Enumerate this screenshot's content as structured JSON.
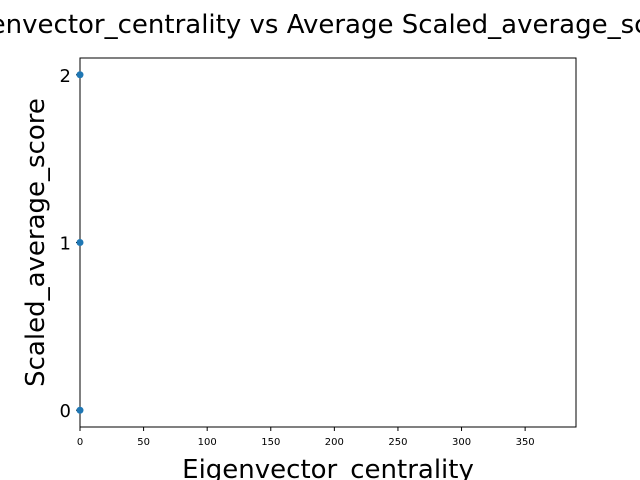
{
  "chart_data": {
    "type": "scatter",
    "title": "Eigenvector_centrality vs Average Scaled_average_score",
    "xlabel": "Eigenvector_centrality",
    "ylabel": "Scaled_average_score",
    "xlim": [
      0,
      390
    ],
    "ylim": [
      -0.1,
      2.1
    ],
    "x_ticks": [
      0,
      50,
      100,
      150,
      200,
      250,
      300,
      350
    ],
    "y_ticks": [
      0,
      1,
      2
    ],
    "grid": false,
    "series": [
      {
        "color": "#1f77b4",
        "points": [
          {
            "x": 0,
            "y": 2
          },
          {
            "x": 0,
            "y": 1
          },
          {
            "x": 0,
            "y": 0
          }
        ]
      }
    ]
  }
}
